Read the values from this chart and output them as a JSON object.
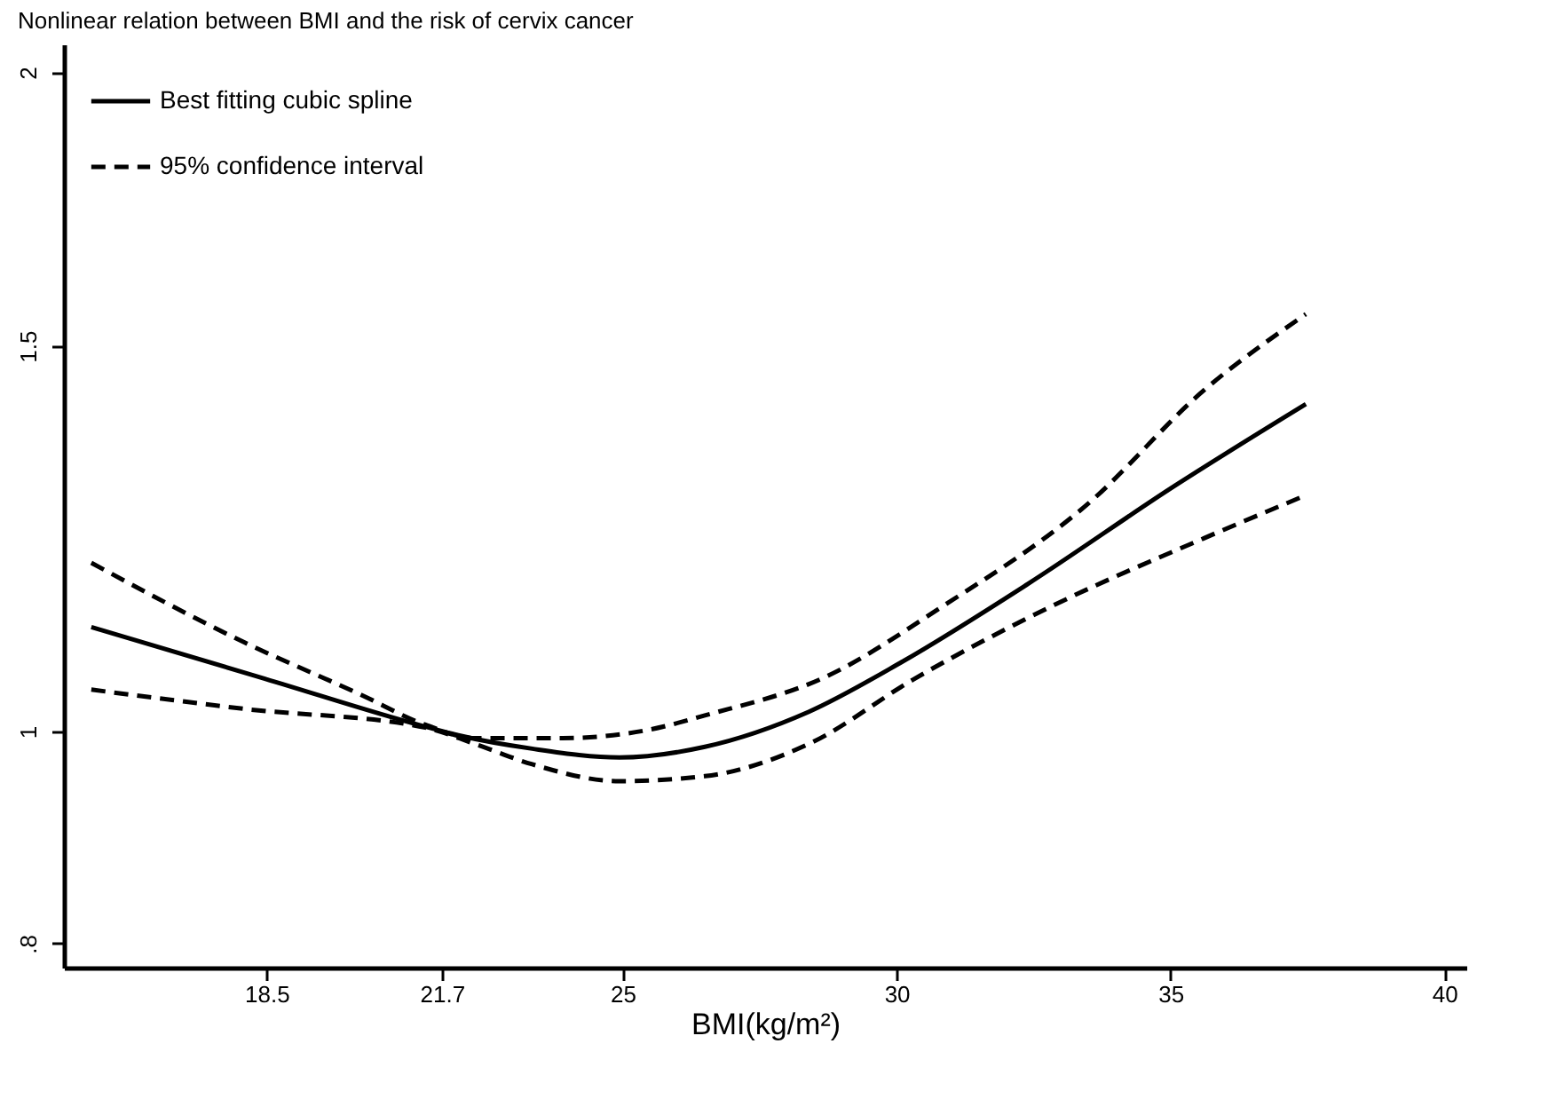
{
  "chart_data": {
    "type": "line",
    "title": "Nonlinear relation between BMI and the risk of cervix cancer",
    "xlabel": "BMI(kg/m²)",
    "xlim": [
      14.8,
      40.4
    ],
    "xticks": [
      18.5,
      21.7,
      25,
      30,
      35,
      40
    ],
    "ylim": [
      0.78,
      2.06
    ],
    "yticks": [
      {
        "value": 0.8,
        "label": ".8"
      },
      1,
      1.5,
      2
    ],
    "log": "y",
    "grid": false,
    "legend": "top left",
    "marker": "none",
    "series": [
      {
        "name": "Best fitting cubic spline",
        "color": "#000000",
        "line_style": "solid",
        "x": [
          15.3,
          18.47,
          21.4,
          22.0,
          23.35,
          24.94,
          26.5,
          28.4,
          30.1,
          32.4,
          35.06,
          37.47
        ],
        "values": [
          1.116,
          1.057,
          1.005,
          0.996,
          0.982,
          0.973,
          0.984,
          1.021,
          1.076,
          1.168,
          1.294,
          1.411
        ]
      },
      {
        "name": "95% confidence interval",
        "color": "#000000",
        "line_style": "dashed",
        "x": [
          15.3,
          18.1,
          20.2,
          21.4,
          22.3,
          23.9,
          25.5,
          26.5,
          28.7,
          30.8,
          33.5,
          35.6,
          37.47
        ],
        "values": [
          1.194,
          1.098,
          1.04,
          1.007,
          0.993,
          0.993,
          1.002,
          1.017,
          1.059,
          1.139,
          1.271,
          1.431,
          1.551
        ]
      },
      {
        "color": "#000000",
        "line_style": "dashed",
        "x": [
          15.3,
          18.1,
          21.4,
          22.3,
          23.35,
          24.94,
          26.5,
          28.4,
          30.3,
          32.9,
          35.6,
          37.47
        ],
        "values": [
          1.045,
          1.024,
          1.004,
          0.987,
          0.966,
          0.949,
          0.954,
          0.987,
          1.056,
          1.143,
          1.225,
          1.282
        ]
      }
    ]
  }
}
